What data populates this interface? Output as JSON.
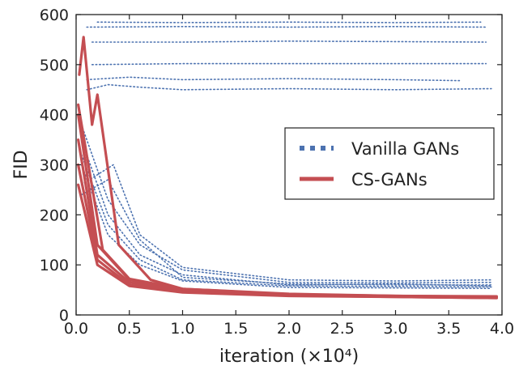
{
  "chart_data": {
    "type": "line",
    "xlabel": "iteration (×10⁴)",
    "ylabel": "FID",
    "xlim": [
      0,
      4.0
    ],
    "ylim": [
      0,
      600
    ],
    "x_ticks": [
      "0.0",
      "0.5",
      "1.0",
      "1.5",
      "2.0",
      "2.5",
      "3.0",
      "3.5",
      "4.0"
    ],
    "y_ticks": [
      "0",
      "100",
      "200",
      "300",
      "400",
      "500",
      "600"
    ],
    "grid": false,
    "legend_position": "center-right",
    "legend": [
      "Vanilla GANs",
      "CS-GANs"
    ],
    "colors": {
      "Vanilla GANs": "#4c72b0",
      "CS-GANs": "#c44e52"
    },
    "series": [
      {
        "name": "Vanilla GANs",
        "style": "dotted",
        "x": [
          0.05,
          0.3,
          0.6,
          1.0,
          2.0,
          3.0,
          3.9
        ],
        "y": [
          240,
          270,
          150,
          75,
          62,
          60,
          60
        ]
      },
      {
        "name": "Vanilla GANs",
        "style": "dotted",
        "x": [
          0.05,
          0.3,
          0.6,
          1.0,
          2.0,
          3.0,
          3.9
        ],
        "y": [
          320,
          180,
          110,
          70,
          58,
          57,
          56
        ]
      },
      {
        "name": "Vanilla GANs",
        "style": "dotted",
        "x": [
          0.05,
          0.3,
          0.6,
          1.0,
          2.0,
          3.0,
          3.9
        ],
        "y": [
          380,
          230,
          140,
          90,
          65,
          64,
          65
        ]
      },
      {
        "name": "Vanilla GANs",
        "style": "dotted",
        "x": [
          0.05,
          0.3,
          0.6,
          1.0,
          2.0,
          3.0,
          3.9
        ],
        "y": [
          300,
          160,
          100,
          68,
          55,
          54,
          53
        ]
      },
      {
        "name": "Vanilla GANs",
        "style": "dotted",
        "x": [
          0.05,
          0.35,
          0.6,
          1.0,
          2.0,
          3.0,
          3.9
        ],
        "y": [
          260,
          300,
          160,
          95,
          70,
          68,
          70
        ]
      },
      {
        "name": "Vanilla GANs",
        "style": "dotted",
        "x": [
          0.05,
          0.3,
          0.6,
          1.0,
          2.0,
          3.0,
          3.9
        ],
        "y": [
          350,
          200,
          120,
          80,
          60,
          62,
          58
        ]
      },
      {
        "name": "Vanilla GANs",
        "style": "dotted",
        "x": [
          0.1,
          0.3,
          0.6,
          1.0,
          2.0,
          3.0,
          3.9
        ],
        "y": [
          450,
          460,
          455,
          450,
          452,
          450,
          452
        ]
      },
      {
        "name": "Vanilla GANs",
        "style": "dotted",
        "x": [
          0.1,
          0.5,
          1.0,
          2.0,
          3.0,
          3.6
        ],
        "y": [
          470,
          475,
          470,
          472,
          470,
          468
        ]
      },
      {
        "name": "Vanilla GANs",
        "style": "dotted",
        "x": [
          0.15,
          1.0,
          2.0,
          3.0,
          3.85
        ],
        "y": [
          500,
          502,
          502,
          502,
          502
        ]
      },
      {
        "name": "Vanilla GANs",
        "style": "dotted",
        "x": [
          0.15,
          1.0,
          2.0,
          3.0,
          3.85
        ],
        "y": [
          545,
          545,
          547,
          546,
          545
        ]
      },
      {
        "name": "Vanilla GANs",
        "style": "dotted",
        "x": [
          0.1,
          1.0,
          2.0,
          3.0,
          3.85
        ],
        "y": [
          575,
          576,
          575,
          576,
          575
        ]
      },
      {
        "name": "Vanilla GANs",
        "style": "dotted",
        "x": [
          0.2,
          1.0,
          2.0,
          3.0,
          3.8
        ],
        "y": [
          585,
          584,
          585,
          584,
          585
        ]
      },
      {
        "name": "CS-GANs",
        "style": "solid",
        "x": [
          0.03,
          0.07,
          0.15,
          0.2,
          0.4,
          0.7,
          1.0,
          2.0,
          3.0,
          3.95
        ],
        "y": [
          480,
          555,
          380,
          440,
          140,
          70,
          52,
          42,
          38,
          36
        ]
      },
      {
        "name": "CS-GANs",
        "style": "solid",
        "x": [
          0.02,
          0.2,
          0.5,
          1.0,
          2.0,
          3.0,
          3.95
        ],
        "y": [
          400,
          140,
          70,
          50,
          40,
          37,
          36
        ]
      },
      {
        "name": "CS-GANs",
        "style": "solid",
        "x": [
          0.02,
          0.2,
          0.5,
          1.0,
          2.0,
          3.0,
          3.95
        ],
        "y": [
          350,
          120,
          65,
          48,
          40,
          37,
          35
        ]
      },
      {
        "name": "CS-GANs",
        "style": "solid",
        "x": [
          0.02,
          0.2,
          0.5,
          1.0,
          2.0,
          3.0,
          3.95
        ],
        "y": [
          300,
          110,
          60,
          46,
          39,
          36,
          34
        ]
      },
      {
        "name": "CS-GANs",
        "style": "solid",
        "x": [
          0.02,
          0.2,
          0.5,
          1.0,
          2.0,
          3.0,
          3.95
        ],
        "y": [
          260,
          100,
          58,
          45,
          38,
          36,
          34
        ]
      },
      {
        "name": "CS-GANs",
        "style": "solid",
        "x": [
          0.02,
          0.25,
          0.5,
          1.0,
          2.0,
          3.0,
          3.95
        ],
        "y": [
          420,
          130,
          72,
          52,
          41,
          38,
          37
        ]
      }
    ]
  }
}
